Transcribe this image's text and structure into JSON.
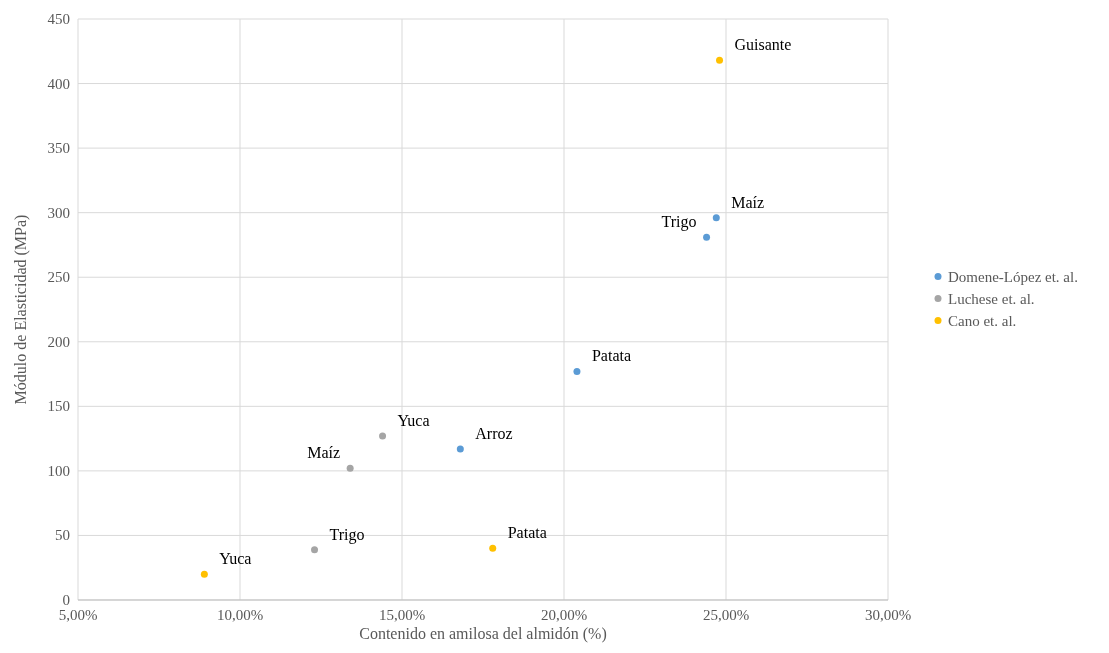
{
  "chart_data": {
    "type": "scatter",
    "xlabel": "Contenido en amilosa del almidón (%)",
    "ylabel": "Módulo de Elasticidad (MPa)",
    "xlim": [
      5,
      30
    ],
    "xticks": [
      {
        "value": 5,
        "label": "5,00%"
      },
      {
        "value": 10,
        "label": "10,00%"
      },
      {
        "value": 15,
        "label": "15,00%"
      },
      {
        "value": 20,
        "label": "20,00%"
      },
      {
        "value": 25,
        "label": "25,00%"
      },
      {
        "value": 30,
        "label": "30,00%"
      }
    ],
    "ylim": [
      0,
      450
    ],
    "yticks": [
      0,
      50,
      100,
      150,
      200,
      250,
      300,
      350,
      400,
      450
    ],
    "grid": true,
    "legend": "right",
    "marker": "circle",
    "series": [
      {
        "name": "Domene-López et. al.",
        "color": "#5b9bd5",
        "x": [
          16.8,
          20.4,
          24.4,
          24.7
        ],
        "values": [
          117,
          177,
          281,
          296
        ]
      },
      {
        "name": "Luchese et. al.",
        "color": "#a5a5a5",
        "x": [
          12.3,
          13.4,
          14.4
        ],
        "values": [
          39,
          102,
          127
        ]
      },
      {
        "name": "Cano et. al.",
        "color": "#ffc000",
        "x": [
          8.9,
          17.8,
          24.8
        ],
        "values": [
          20,
          40,
          418
        ]
      }
    ],
    "annotations": [
      {
        "text": "Arroz",
        "x": 16.8,
        "y": 117
      },
      {
        "text": "Patata",
        "x": 20.4,
        "y": 177
      },
      {
        "text": "Trigo",
        "x": 24.4,
        "y": 281
      },
      {
        "text": "Maíz",
        "x": 24.7,
        "y": 296
      },
      {
        "text": "Trigo",
        "x": 12.3,
        "y": 39
      },
      {
        "text": "Maíz",
        "x": 13.4,
        "y": 102
      },
      {
        "text": "Yuca",
        "x": 14.4,
        "y": 127
      },
      {
        "text": "Yuca",
        "x": 8.9,
        "y": 20
      },
      {
        "text": "Patata",
        "x": 17.8,
        "y": 40
      },
      {
        "text": "Guisante",
        "x": 24.8,
        "y": 418
      }
    ]
  }
}
